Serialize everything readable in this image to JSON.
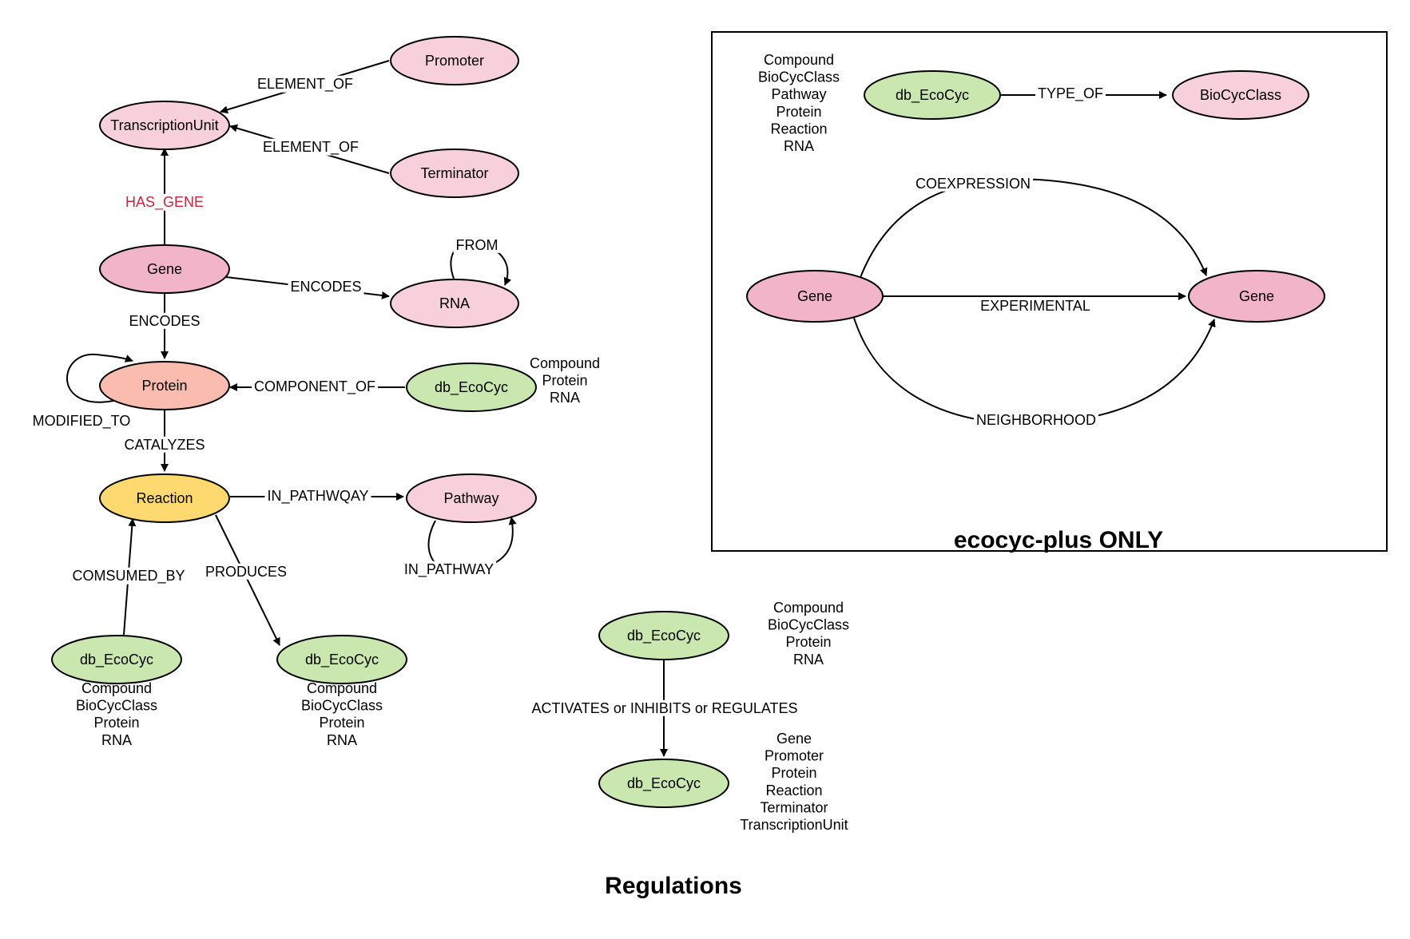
{
  "colors": {
    "pink_light": "#f8d0dc",
    "pink_mid": "#f2b4c8",
    "salmon": "#fbbcb0",
    "yellow": "#fdd96f",
    "green": "#c9e7ae"
  },
  "nodes": {
    "promoter": "Promoter",
    "transcription_unit": "TranscriptionUnit",
    "terminator": "Terminator",
    "gene": "Gene",
    "rna": "RNA",
    "protein": "Protein",
    "db_component": "db_EcoCyc",
    "reaction": "Reaction",
    "pathway": "Pathway",
    "db_consumed": "db_EcoCyc",
    "db_produces": "db_EcoCyc",
    "db_reg_source": "db_EcoCyc",
    "db_reg_target": "db_EcoCyc",
    "plus_db": "db_EcoCyc",
    "plus_biocycclass": "BioCycClass",
    "plus_gene_left": "Gene",
    "plus_gene_right": "Gene"
  },
  "edges": {
    "element_of_promoter": "ELEMENT_OF",
    "element_of_terminator": "ELEMENT_OF",
    "has_gene": "HAS_GENE",
    "encodes_rna": "ENCODES",
    "from": "FROM",
    "encodes_protein": "ENCODES",
    "modified_to": "MODIFIED_TO",
    "component_of": "COMPONENT_OF",
    "catalyzes": "CATALYZES",
    "in_pathwqay": "IN_PATHWQAY",
    "in_pathway": "IN_PATHWAY",
    "comsumed_by": "COMSUMED_BY",
    "produces": "PRODUCES",
    "regulation": "ACTIVATES or INHIBITS or REGULATES",
    "type_of": "TYPE_OF",
    "coexpression": "COEXPRESSION",
    "experimental": "EXPERIMENTAL",
    "neighborhood": "NEIGHBORHOOD"
  },
  "notes": {
    "component_types": [
      "Compound",
      "Protein",
      "RNA"
    ],
    "consumed_types": [
      "Compound",
      "BioCycClass",
      "Protein",
      "RNA"
    ],
    "produces_types": [
      "Compound",
      "BioCycClass",
      "Protein",
      "RNA"
    ],
    "reg_source_types": [
      "Compound",
      "BioCycClass",
      "Protein",
      "RNA"
    ],
    "reg_target_types": [
      "Gene",
      "Promoter",
      "Protein",
      "Reaction",
      "Terminator",
      "TranscriptionUnit"
    ],
    "plus_db_types": [
      "Compound",
      "BioCycClass",
      "Pathway",
      "Protein",
      "Reaction",
      "RNA"
    ]
  },
  "titles": {
    "plus_box": "ecocyc-plus ONLY",
    "regulations": "Regulations"
  }
}
